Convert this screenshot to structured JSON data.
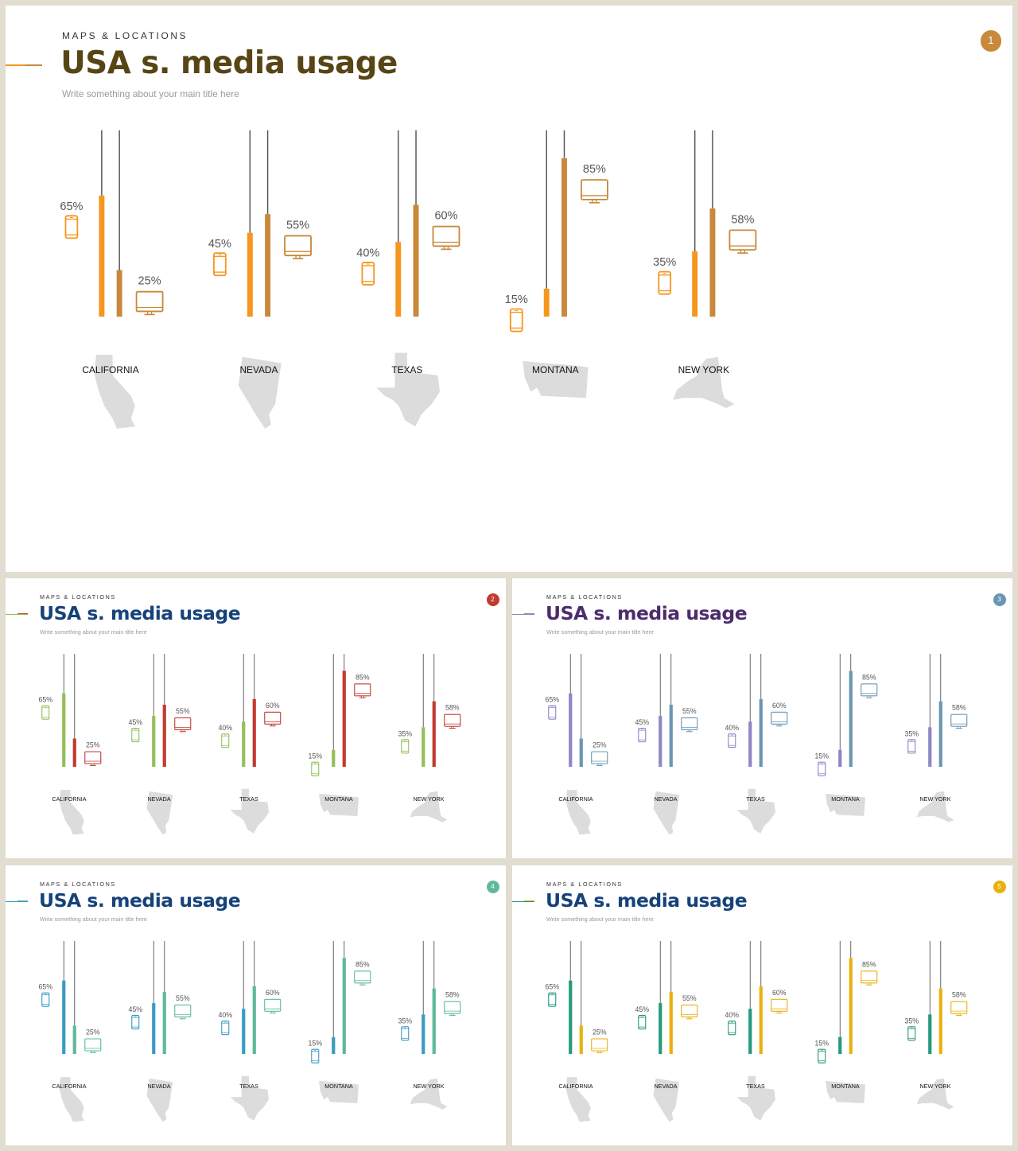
{
  "states": [
    "CALIFORNIA",
    "NEVADA",
    "TEXAS",
    "MONTANA",
    "NEW YORK"
  ],
  "slides": [
    {
      "kicker": "MAPS & LOCATIONS",
      "title": "USA s. media usage",
      "subtitle": "Write something about your main title here",
      "badge": "1",
      "colors": {
        "mobile": "#f6961e",
        "desktop": "#c8893b",
        "title": "#574515",
        "badge": "#c8893b",
        "accent1": "#f6961e",
        "accent2": "#c8893b"
      }
    },
    {
      "kicker": "MAPS & LOCATIONS",
      "title": "USA s. media usage",
      "subtitle": "Write something about your main title here",
      "badge": "2",
      "colors": {
        "mobile": "#96bf5a",
        "desktop": "#c23b32",
        "title": "#16427a",
        "badge": "#c23b32",
        "accent1": "#96bf5a",
        "accent2": "#c23b32"
      }
    },
    {
      "kicker": "MAPS & LOCATIONS",
      "title": "USA s. media usage",
      "subtitle": "Write something about your main title here",
      "badge": "3",
      "colors": {
        "mobile": "#8e86c6",
        "desktop": "#6b96b2",
        "title": "#4d2c6b",
        "badge": "#6b96b2",
        "accent1": "#8e86c6",
        "accent2": "#6b96b2"
      }
    },
    {
      "kicker": "MAPS & LOCATIONS",
      "title": "USA s. media usage",
      "subtitle": "Write something about your main title here",
      "badge": "4",
      "colors": {
        "mobile": "#3a9bc4",
        "desktop": "#5fb99a",
        "title": "#16427a",
        "badge": "#5fb99a",
        "accent1": "#3a9bc4",
        "accent2": "#5fb99a"
      }
    },
    {
      "kicker": "MAPS & LOCATIONS",
      "title": "USA s. media usage",
      "subtitle": "Write something about your main title here",
      "badge": "5",
      "colors": {
        "mobile": "#249a7c",
        "desktop": "#e9b10f",
        "title": "#16427a",
        "badge": "#e9b10f",
        "accent1": "#249a7c",
        "accent2": "#e9b10f"
      }
    }
  ],
  "chart_data": {
    "type": "bar",
    "categories": [
      "CALIFORNIA",
      "NEVADA",
      "TEXAS",
      "MONTANA",
      "NEW YORK"
    ],
    "series": [
      {
        "icon": "mobile-icon",
        "values": [
          65,
          45,
          40,
          15,
          35
        ]
      },
      {
        "icon": "desktop-icon",
        "values": [
          25,
          55,
          60,
          85,
          58
        ]
      }
    ],
    "value_format": "{v}%",
    "ylim": [
      0,
      100
    ]
  }
}
